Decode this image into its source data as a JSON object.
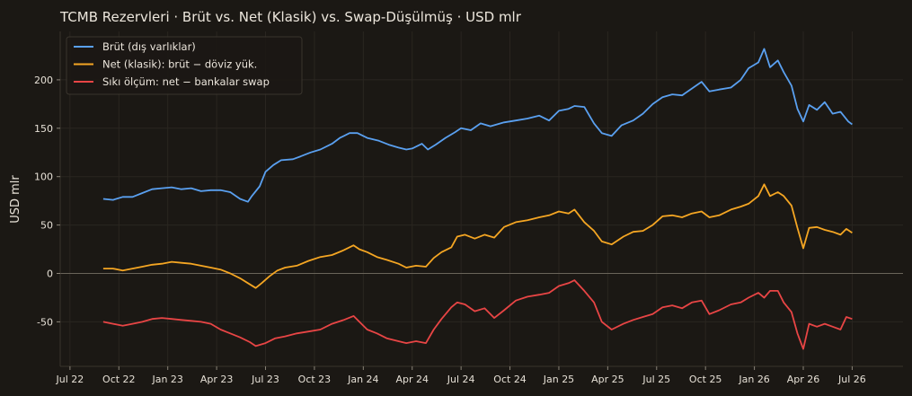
{
  "chart_data": {
    "type": "line",
    "title": "TCMB Rezervleri · Brüt vs. Net (Klasik) vs. Swap-Düşülmüş · USD mlr",
    "xlabel": "",
    "ylabel": "USD mlr",
    "ylim": [
      -96,
      250
    ],
    "xlim": [
      2022.45,
      2026.76
    ],
    "grid": true,
    "legend": "top-left",
    "y_ticks": [
      -50,
      0,
      50,
      100,
      150,
      200
    ],
    "x_ticks": [
      {
        "x": 2022.5,
        "label": "Jul 22"
      },
      {
        "x": 2022.75,
        "label": "Oct 22"
      },
      {
        "x": 2023.0,
        "label": "Jan 23"
      },
      {
        "x": 2023.25,
        "label": "Apr 23"
      },
      {
        "x": 2023.5,
        "label": "Jul 23"
      },
      {
        "x": 2023.75,
        "label": "Oct 23"
      },
      {
        "x": 2024.0,
        "label": "Jan 24"
      },
      {
        "x": 2024.25,
        "label": "Apr 24"
      },
      {
        "x": 2024.5,
        "label": "Jul 24"
      },
      {
        "x": 2024.75,
        "label": "Oct 24"
      },
      {
        "x": 2025.0,
        "label": "Jan 25"
      },
      {
        "x": 2025.25,
        "label": "Apr 25"
      },
      {
        "x": 2025.5,
        "label": "Jul 25"
      },
      {
        "x": 2025.75,
        "label": "Oct 25"
      },
      {
        "x": 2026.0,
        "label": "Jan 26"
      },
      {
        "x": 2026.25,
        "label": "Apr 26"
      },
      {
        "x": 2026.5,
        "label": "Jul 26"
      }
    ],
    "zero_line": true,
    "series": [
      {
        "name": "Brüt (dış varlıklar)",
        "color": "#5aa0f0",
        "points": [
          [
            2022.67,
            77
          ],
          [
            2022.72,
            76
          ],
          [
            2022.77,
            79
          ],
          [
            2022.82,
            79
          ],
          [
            2022.87,
            83
          ],
          [
            2022.92,
            87
          ],
          [
            2022.97,
            88
          ],
          [
            2023.02,
            89
          ],
          [
            2023.07,
            87
          ],
          [
            2023.12,
            88
          ],
          [
            2023.17,
            85
          ],
          [
            2023.22,
            86
          ],
          [
            2023.27,
            86
          ],
          [
            2023.32,
            84
          ],
          [
            2023.37,
            77
          ],
          [
            2023.41,
            74
          ],
          [
            2023.43,
            80
          ],
          [
            2023.47,
            90
          ],
          [
            2023.5,
            105
          ],
          [
            2023.54,
            112
          ],
          [
            2023.58,
            117
          ],
          [
            2023.64,
            118
          ],
          [
            2023.68,
            121
          ],
          [
            2023.73,
            125
          ],
          [
            2023.78,
            128
          ],
          [
            2023.84,
            134
          ],
          [
            2023.88,
            140
          ],
          [
            2023.93,
            145
          ],
          [
            2023.97,
            145
          ],
          [
            2024.02,
            140
          ],
          [
            2024.08,
            137
          ],
          [
            2024.13,
            133
          ],
          [
            2024.18,
            130
          ],
          [
            2024.22,
            128
          ],
          [
            2024.25,
            129
          ],
          [
            2024.3,
            134
          ],
          [
            2024.33,
            128
          ],
          [
            2024.37,
            133
          ],
          [
            2024.42,
            140
          ],
          [
            2024.47,
            146
          ],
          [
            2024.5,
            150
          ],
          [
            2024.55,
            148
          ],
          [
            2024.6,
            155
          ],
          [
            2024.65,
            152
          ],
          [
            2024.72,
            156
          ],
          [
            2024.78,
            158
          ],
          [
            2024.84,
            160
          ],
          [
            2024.9,
            163
          ],
          [
            2024.95,
            158
          ],
          [
            2025.0,
            168
          ],
          [
            2025.05,
            170
          ],
          [
            2025.08,
            173
          ],
          [
            2025.13,
            172
          ],
          [
            2025.18,
            155
          ],
          [
            2025.22,
            145
          ],
          [
            2025.27,
            142
          ],
          [
            2025.32,
            153
          ],
          [
            2025.38,
            158
          ],
          [
            2025.43,
            165
          ],
          [
            2025.48,
            175
          ],
          [
            2025.53,
            182
          ],
          [
            2025.58,
            185
          ],
          [
            2025.63,
            184
          ],
          [
            2025.68,
            191
          ],
          [
            2025.73,
            198
          ],
          [
            2025.77,
            188
          ],
          [
            2025.82,
            190
          ],
          [
            2025.88,
            192
          ],
          [
            2025.93,
            200
          ],
          [
            2025.97,
            212
          ],
          [
            2026.02,
            218
          ],
          [
            2026.05,
            232
          ],
          [
            2026.08,
            213
          ],
          [
            2026.12,
            220
          ],
          [
            2026.15,
            208
          ],
          [
            2026.19,
            194
          ],
          [
            2026.22,
            170
          ],
          [
            2026.25,
            157
          ],
          [
            2026.28,
            174
          ],
          [
            2026.32,
            169
          ],
          [
            2026.36,
            177
          ],
          [
            2026.4,
            165
          ],
          [
            2026.44,
            167
          ],
          [
            2026.48,
            157
          ],
          [
            2026.5,
            154
          ]
        ]
      },
      {
        "name": "Net (klasik): brüt − döviz yük.",
        "color": "#f5a623",
        "points": [
          [
            2022.67,
            5
          ],
          [
            2022.72,
            5
          ],
          [
            2022.77,
            3
          ],
          [
            2022.82,
            5
          ],
          [
            2022.87,
            7
          ],
          [
            2022.92,
            9
          ],
          [
            2022.97,
            10
          ],
          [
            2023.02,
            12
          ],
          [
            2023.07,
            11
          ],
          [
            2023.12,
            10
          ],
          [
            2023.17,
            8
          ],
          [
            2023.22,
            6
          ],
          [
            2023.27,
            4
          ],
          [
            2023.32,
            0
          ],
          [
            2023.37,
            -5
          ],
          [
            2023.41,
            -10
          ],
          [
            2023.45,
            -15
          ],
          [
            2023.48,
            -10
          ],
          [
            2023.52,
            -3
          ],
          [
            2023.56,
            3
          ],
          [
            2023.6,
            6
          ],
          [
            2023.66,
            8
          ],
          [
            2023.72,
            13
          ],
          [
            2023.78,
            17
          ],
          [
            2023.84,
            19
          ],
          [
            2023.9,
            24
          ],
          [
            2023.95,
            29
          ],
          [
            2023.98,
            25
          ],
          [
            2024.02,
            22
          ],
          [
            2024.07,
            17
          ],
          [
            2024.12,
            14
          ],
          [
            2024.18,
            10
          ],
          [
            2024.22,
            6
          ],
          [
            2024.27,
            8
          ],
          [
            2024.32,
            7
          ],
          [
            2024.36,
            16
          ],
          [
            2024.4,
            22
          ],
          [
            2024.45,
            27
          ],
          [
            2024.48,
            38
          ],
          [
            2024.52,
            40
          ],
          [
            2024.57,
            36
          ],
          [
            2024.62,
            40
          ],
          [
            2024.67,
            37
          ],
          [
            2024.72,
            48
          ],
          [
            2024.78,
            53
          ],
          [
            2024.84,
            55
          ],
          [
            2024.9,
            58
          ],
          [
            2024.95,
            60
          ],
          [
            2025.0,
            64
          ],
          [
            2025.05,
            62
          ],
          [
            2025.08,
            66
          ],
          [
            2025.13,
            53
          ],
          [
            2025.18,
            44
          ],
          [
            2025.22,
            33
          ],
          [
            2025.27,
            30
          ],
          [
            2025.33,
            38
          ],
          [
            2025.38,
            43
          ],
          [
            2025.43,
            44
          ],
          [
            2025.48,
            50
          ],
          [
            2025.53,
            59
          ],
          [
            2025.58,
            60
          ],
          [
            2025.63,
            58
          ],
          [
            2025.68,
            62
          ],
          [
            2025.73,
            64
          ],
          [
            2025.77,
            58
          ],
          [
            2025.82,
            60
          ],
          [
            2025.88,
            66
          ],
          [
            2025.93,
            69
          ],
          [
            2025.97,
            72
          ],
          [
            2026.02,
            80
          ],
          [
            2026.05,
            92
          ],
          [
            2026.08,
            80
          ],
          [
            2026.12,
            84
          ],
          [
            2026.15,
            80
          ],
          [
            2026.19,
            70
          ],
          [
            2026.22,
            47
          ],
          [
            2026.25,
            26
          ],
          [
            2026.28,
            47
          ],
          [
            2026.32,
            48
          ],
          [
            2026.36,
            45
          ],
          [
            2026.4,
            43
          ],
          [
            2026.44,
            40
          ],
          [
            2026.47,
            46
          ],
          [
            2026.5,
            42
          ]
        ]
      },
      {
        "name": "Sıkı ölçüm: net − bankalar swap",
        "color": "#e84545",
        "points": [
          [
            2022.67,
            -50
          ],
          [
            2022.72,
            -52
          ],
          [
            2022.77,
            -54
          ],
          [
            2022.82,
            -52
          ],
          [
            2022.87,
            -50
          ],
          [
            2022.92,
            -47
          ],
          [
            2022.97,
            -46
          ],
          [
            2023.02,
            -47
          ],
          [
            2023.07,
            -48
          ],
          [
            2023.12,
            -49
          ],
          [
            2023.17,
            -50
          ],
          [
            2023.22,
            -52
          ],
          [
            2023.27,
            -58
          ],
          [
            2023.32,
            -62
          ],
          [
            2023.37,
            -66
          ],
          [
            2023.42,
            -71
          ],
          [
            2023.45,
            -75
          ],
          [
            2023.5,
            -72
          ],
          [
            2023.55,
            -67
          ],
          [
            2023.6,
            -65
          ],
          [
            2023.66,
            -62
          ],
          [
            2023.72,
            -60
          ],
          [
            2023.78,
            -58
          ],
          [
            2023.84,
            -52
          ],
          [
            2023.9,
            -48
          ],
          [
            2023.95,
            -44
          ],
          [
            2023.98,
            -50
          ],
          [
            2024.02,
            -58
          ],
          [
            2024.07,
            -62
          ],
          [
            2024.12,
            -67
          ],
          [
            2024.18,
            -70
          ],
          [
            2024.22,
            -72
          ],
          [
            2024.27,
            -70
          ],
          [
            2024.32,
            -72
          ],
          [
            2024.36,
            -58
          ],
          [
            2024.4,
            -47
          ],
          [
            2024.45,
            -35
          ],
          [
            2024.48,
            -30
          ],
          [
            2024.52,
            -32
          ],
          [
            2024.57,
            -39
          ],
          [
            2024.62,
            -36
          ],
          [
            2024.67,
            -46
          ],
          [
            2024.72,
            -38
          ],
          [
            2024.78,
            -28
          ],
          [
            2024.84,
            -24
          ],
          [
            2024.9,
            -22
          ],
          [
            2024.95,
            -20
          ],
          [
            2025.0,
            -13
          ],
          [
            2025.05,
            -10
          ],
          [
            2025.08,
            -7
          ],
          [
            2025.13,
            -18
          ],
          [
            2025.18,
            -30
          ],
          [
            2025.22,
            -50
          ],
          [
            2025.27,
            -58
          ],
          [
            2025.33,
            -52
          ],
          [
            2025.38,
            -48
          ],
          [
            2025.43,
            -45
          ],
          [
            2025.48,
            -42
          ],
          [
            2025.53,
            -35
          ],
          [
            2025.58,
            -33
          ],
          [
            2025.63,
            -36
          ],
          [
            2025.68,
            -30
          ],
          [
            2025.73,
            -28
          ],
          [
            2025.77,
            -42
          ],
          [
            2025.82,
            -38
          ],
          [
            2025.88,
            -32
          ],
          [
            2025.93,
            -30
          ],
          [
            2025.97,
            -25
          ],
          [
            2026.02,
            -20
          ],
          [
            2026.05,
            -25
          ],
          [
            2026.08,
            -18
          ],
          [
            2026.12,
            -18
          ],
          [
            2026.15,
            -30
          ],
          [
            2026.19,
            -40
          ],
          [
            2026.22,
            -62
          ],
          [
            2026.25,
            -78
          ],
          [
            2026.28,
            -52
          ],
          [
            2026.32,
            -55
          ],
          [
            2026.36,
            -52
          ],
          [
            2026.4,
            -55
          ],
          [
            2026.44,
            -58
          ],
          [
            2026.47,
            -45
          ],
          [
            2026.5,
            -47
          ]
        ]
      }
    ]
  }
}
